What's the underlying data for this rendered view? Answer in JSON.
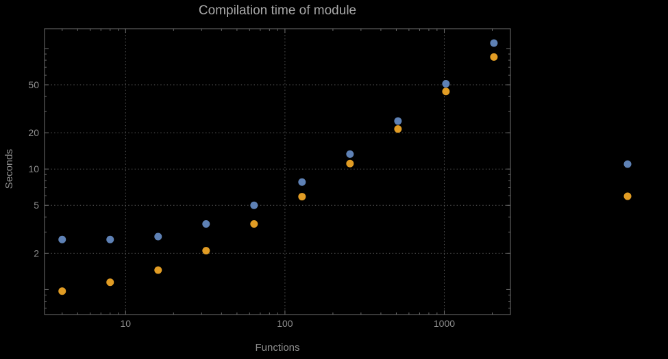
{
  "chart_data": {
    "type": "scatter",
    "title": "Compilation time of module",
    "xlabel": "Functions",
    "ylabel": "Seconds",
    "x_scale": "log",
    "y_scale": "log",
    "xlim": [
      3.1,
      2600
    ],
    "ylim": [
      0.62,
      146
    ],
    "x_ticks": [
      10,
      100,
      1000
    ],
    "x_tick_labels": [
      "10",
      "100",
      "1000"
    ],
    "y_ticks": [
      2,
      5,
      10,
      20,
      50
    ],
    "y_tick_labels": [
      "2",
      "5",
      "10",
      "20",
      "50"
    ],
    "grid": "major-dotted",
    "legend_position": "right-outside",
    "series": [
      {
        "name": "series-1-blue",
        "color": "#5e81b5",
        "x": [
          4,
          8,
          16,
          32,
          64,
          128,
          256,
          512,
          1024,
          2048
        ],
        "y": [
          2.6,
          2.6,
          2.75,
          3.5,
          5.0,
          7.8,
          13.3,
          25,
          51,
          111
        ]
      },
      {
        "name": "series-2-orange",
        "color": "#e19c24",
        "x": [
          4,
          8,
          16,
          32,
          64,
          128,
          256,
          512,
          1024,
          2048
        ],
        "y": [
          0.97,
          1.15,
          1.45,
          2.1,
          3.5,
          5.9,
          11.1,
          21.5,
          44,
          85
        ]
      }
    ],
    "colors": {
      "background": "#000000",
      "title_text": "#a8a8a8",
      "axis_text": "#8f8f8f",
      "frame": "#6f6f6f",
      "grid": "#585858"
    }
  }
}
